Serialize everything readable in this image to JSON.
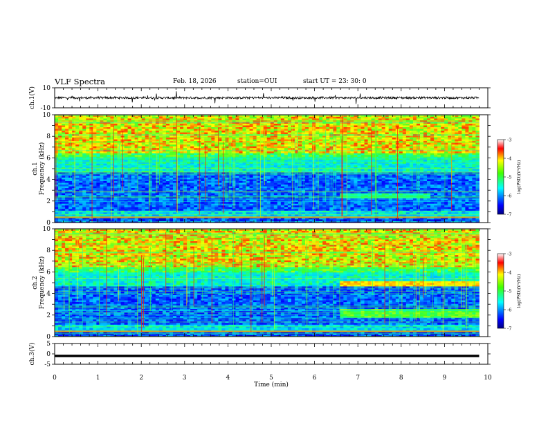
{
  "header": {
    "title": "VLF Spectra",
    "date": "Feb. 18, 2026",
    "station": "station=OUI",
    "start": "start  UT  =   23: 30: 0"
  },
  "chart_data": [
    {
      "type": "line",
      "panel": "ch1-waveform",
      "ylabel": "ch.1(V)",
      "ylim": [
        -10,
        10
      ],
      "yticks": [
        "10",
        "-10"
      ],
      "xlim": [
        0,
        10
      ],
      "baseline": 0,
      "amplitude": 1
    },
    {
      "type": "heatmap",
      "panel": "ch1-spectrogram",
      "ylabel": "ch.1\nFrequency (kHz)",
      "ylim": [
        0,
        10
      ],
      "yticks": [
        "0",
        "2",
        "4",
        "6",
        "8",
        "10"
      ],
      "xlim": [
        0,
        9.8
      ],
      "colorbar": {
        "label": "log(PSD)(V²/Hz)",
        "range": [
          -7,
          -3
        ],
        "ticks": [
          "-3",
          "-4",
          "-5",
          "-6",
          "-7"
        ]
      },
      "features": {
        "spheric_count": 60,
        "high_band_kHz": [
          6.5,
          10
        ],
        "low_band_kHz": [
          0,
          0.5
        ]
      }
    },
    {
      "type": "heatmap",
      "panel": "ch2-spectrogram",
      "ylabel": "ch.2\nFrequency (kHz)",
      "ylim": [
        0,
        10
      ],
      "yticks": [
        "0",
        "2",
        "4",
        "6",
        "8",
        "10"
      ],
      "xlim": [
        0,
        9.8
      ],
      "colorbar": {
        "label": "log(PSD)(V²/Hz)",
        "range": [
          -7,
          -3
        ],
        "ticks": [
          "-3",
          "-4",
          "-5",
          "-6",
          "-7"
        ]
      },
      "features": {
        "spheric_count": 55,
        "emission_band_kHz": [
          4.6,
          5.2
        ],
        "emission_start_min": 6.55
      }
    },
    {
      "type": "line",
      "panel": "ch3-waveform",
      "ylabel": "ch.3(V)",
      "ylim": [
        -5,
        5
      ],
      "yticks": [
        "5",
        "0",
        "-5"
      ],
      "xlim": [
        0,
        10
      ],
      "baseline": -1,
      "xlabel": "Time (min)",
      "xticks": [
        "0",
        "1",
        "2",
        "3",
        "4",
        "5",
        "6",
        "7",
        "8",
        "9",
        "10"
      ]
    }
  ]
}
